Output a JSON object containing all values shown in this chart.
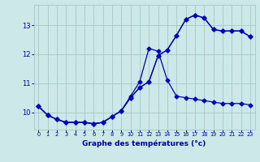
{
  "xlabel": "Graphe des températures (°c)",
  "bg_color": "#cce8e8",
  "line_color": "#0000bb",
  "grid_color": "#aacccc",
  "axis_color": "#0000aa",
  "xlim": [
    -0.5,
    23.5
  ],
  "ylim": [
    9.4,
    13.7
  ],
  "xticks": [
    0,
    1,
    2,
    3,
    4,
    5,
    6,
    7,
    8,
    9,
    10,
    11,
    12,
    13,
    14,
    15,
    16,
    17,
    18,
    19,
    20,
    21,
    22,
    23
  ],
  "yticks": [
    10,
    11,
    12,
    13
  ],
  "line1_x": [
    0,
    1,
    2,
    3,
    4,
    5,
    6,
    7,
    8,
    9,
    10,
    11,
    12,
    13,
    14,
    15,
    16,
    17,
    18,
    19,
    20,
    21,
    22,
    23
  ],
  "line1_y": [
    10.2,
    9.9,
    9.75,
    9.65,
    9.65,
    9.65,
    9.6,
    9.65,
    9.85,
    10.05,
    10.5,
    10.85,
    11.05,
    11.95,
    12.15,
    12.65,
    13.2,
    13.35,
    13.25,
    12.85,
    12.8,
    12.8,
    12.8,
    12.6
  ],
  "line2_x": [
    0,
    1,
    2,
    3,
    4,
    5,
    6,
    7,
    8,
    9,
    10,
    11,
    12,
    13,
    14,
    15,
    16,
    17,
    18,
    19,
    20,
    21,
    22,
    23
  ],
  "line2_y": [
    10.2,
    9.9,
    9.75,
    9.65,
    9.65,
    9.65,
    9.6,
    9.65,
    9.85,
    10.05,
    10.55,
    11.05,
    12.2,
    12.1,
    11.1,
    10.55,
    10.5,
    10.45,
    10.4,
    10.35,
    10.3,
    10.3,
    10.3,
    10.25
  ],
  "line3_x": [
    0,
    1,
    2,
    3,
    4,
    5,
    6,
    7,
    8,
    9,
    10,
    11,
    12,
    13,
    14,
    15,
    16,
    17,
    18,
    19,
    20,
    21,
    22,
    23
  ],
  "line3_y": [
    10.2,
    9.9,
    9.75,
    9.65,
    9.65,
    9.65,
    9.6,
    9.65,
    9.85,
    10.05,
    10.5,
    10.85,
    11.05,
    11.95,
    12.15,
    12.65,
    13.2,
    13.35,
    13.25,
    12.85,
    12.8,
    12.8,
    12.8,
    12.6
  ],
  "marker_size": 2.5,
  "line_width": 0.9,
  "xlabel_fontsize": 6.5,
  "xtick_fontsize": 4.8,
  "ytick_fontsize": 6.0
}
